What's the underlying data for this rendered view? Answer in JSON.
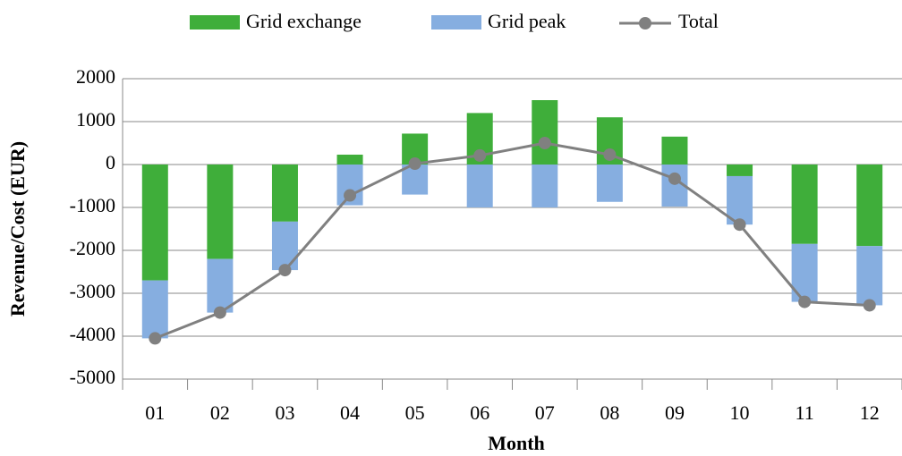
{
  "chart_data": {
    "type": "bar",
    "x_label": "Month",
    "y_label": "Revenue/Cost (EUR)",
    "categories": [
      "01",
      "02",
      "03",
      "04",
      "05",
      "06",
      "07",
      "08",
      "09",
      "10",
      "11",
      "12"
    ],
    "series": [
      {
        "name": "Grid exchange",
        "color": "#3fae3a",
        "type": "bar",
        "values": [
          -2700,
          -2200,
          -1330,
          230,
          720,
          1200,
          1500,
          1100,
          650,
          -270,
          -1850,
          -1900
        ]
      },
      {
        "name": "Grid peak",
        "color": "#86aee0",
        "type": "bar",
        "values": [
          -1350,
          -1250,
          -1130,
          -950,
          -700,
          -1000,
          -1000,
          -870,
          -980,
          -1130,
          -1350,
          -1380
        ]
      },
      {
        "name": "Total",
        "color": "#808080",
        "type": "line",
        "values": [
          -4050,
          -3450,
          -2460,
          -720,
          20,
          210,
          500,
          230,
          -330,
          -1400,
          -3200,
          -3280
        ]
      }
    ],
    "stacked": true,
    "ylim": [
      -5000,
      2000
    ],
    "yticks": [
      -5000,
      -4000,
      -3000,
      -2000,
      -1000,
      0,
      1000,
      2000
    ],
    "grid": true
  }
}
